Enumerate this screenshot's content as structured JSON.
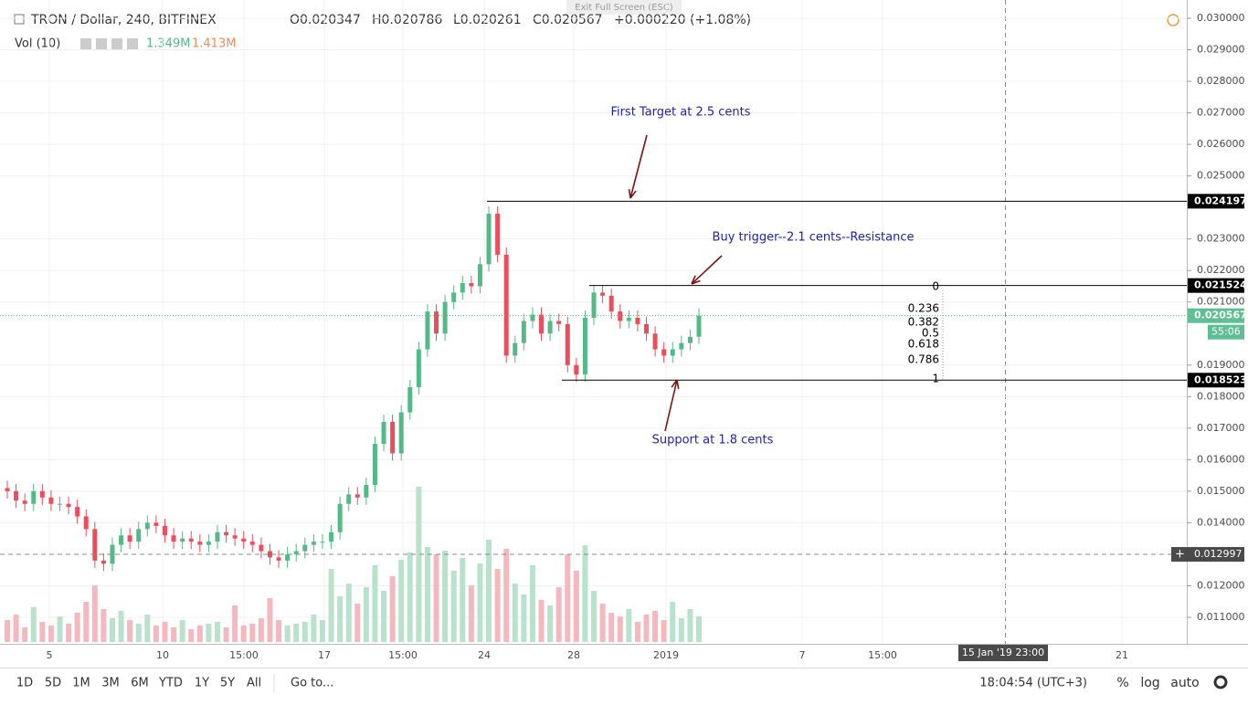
{
  "top_hint": "Exit Full Screen (ESC)",
  "header": {
    "symbol": "TRON / Dollar, 240, BITFINEX",
    "open": "O0.020347",
    "high": "H0.020786",
    "low": "L0.020261",
    "close": "C0.020567",
    "change": "+0.000220 (+1.08%)"
  },
  "volume_legend": {
    "label": "Vol (10)",
    "value_1": "1.349M",
    "value_2": "1.413M"
  },
  "price_axis": {
    "ylim": [
      0.011,
      0.03
    ],
    "ticks": [
      {
        "value": 0.03,
        "label": "0.030000"
      },
      {
        "value": 0.029,
        "label": "0.029000"
      },
      {
        "value": 0.028,
        "label": "0.028000"
      },
      {
        "value": 0.027,
        "label": "0.027000"
      },
      {
        "value": 0.026,
        "label": "0.026000"
      },
      {
        "value": 0.025,
        "label": "0.025000"
      },
      {
        "value": 0.023,
        "label": "0.023000"
      },
      {
        "value": 0.022,
        "label": "0.022000"
      },
      {
        "value": 0.021,
        "label": "0.021000"
      },
      {
        "value": 0.019,
        "label": "0.019000"
      },
      {
        "value": 0.018,
        "label": "0.018000"
      },
      {
        "value": 0.017,
        "label": "0.017000"
      },
      {
        "value": 0.016,
        "label": "0.016000"
      },
      {
        "value": 0.015,
        "label": "0.015000"
      },
      {
        "value": 0.014,
        "label": "0.014000"
      },
      {
        "value": 0.012,
        "label": "0.012000"
      },
      {
        "value": 0.011,
        "label": "0.011000"
      }
    ],
    "markers": [
      {
        "value": 0.024197,
        "label": "0.024197"
      },
      {
        "value": 0.021524,
        "label": "0.021524"
      },
      {
        "value": 0.018523,
        "label": "0.018523"
      }
    ],
    "last_price": {
      "value": 0.020567,
      "label": "0.020567",
      "countdown": "55:06"
    },
    "crosshair": {
      "value": 0.012997,
      "label": "0.012997"
    }
  },
  "candles": {
    "closes": [
      0.015,
      0.0147,
      0.0146,
      0.015,
      0.0148,
      0.0146,
      0.0146,
      0.0145,
      0.0142,
      0.0138,
      0.0128,
      0.0127,
      0.0133,
      0.0136,
      0.0134,
      0.0138,
      0.014,
      0.0139,
      0.0136,
      0.0134,
      0.0135,
      0.0134,
      0.0133,
      0.0134,
      0.0137,
      0.0136,
      0.0135,
      0.0134,
      0.0133,
      0.0131,
      0.0129,
      0.0128,
      0.013,
      0.0131,
      0.0133,
      0.0134,
      0.0134,
      0.0137,
      0.0146,
      0.0149,
      0.0148,
      0.0152,
      0.0165,
      0.0172,
      0.0162,
      0.0175,
      0.0183,
      0.0195,
      0.0207,
      0.02,
      0.021,
      0.0213,
      0.0216,
      0.0215,
      0.0222,
      0.0238,
      0.0225,
      0.0193,
      0.0197,
      0.0204,
      0.0206,
      0.02,
      0.0204,
      0.0203,
      0.019,
      0.0187,
      0.0205,
      0.0213,
      0.0212,
      0.0207,
      0.0204,
      0.0205,
      0.0203,
      0.02,
      0.0195,
      0.0193,
      0.0195,
      0.0197,
      0.0199,
      0.020567
    ],
    "first_open": 0.0151,
    "volumes": [
      1.2,
      1.5,
      0.8,
      1.9,
      1.1,
      0.9,
      1.4,
      1.0,
      1.6,
      2.2,
      3.1,
      1.8,
      1.3,
      1.7,
      1.2,
      1.0,
      1.5,
      0.9,
      1.1,
      0.8,
      1.2,
      0.7,
      0.9,
      1.0,
      1.1,
      0.8,
      2.0,
      0.9,
      1.0,
      1.3,
      2.4,
      1.2,
      0.9,
      1.0,
      1.1,
      1.5,
      1.2,
      4.0,
      2.5,
      3.2,
      2.1,
      3.0,
      4.2,
      2.8,
      3.6,
      4.5,
      4.9,
      8.5,
      5.2,
      4.8,
      5.0,
      3.9,
      4.6,
      3.1,
      4.3,
      5.6,
      4.0,
      5.1,
      3.2,
      2.6,
      4.2,
      2.3,
      2.0,
      3.0,
      4.8,
      3.9,
      5.3,
      2.8,
      2.1,
      1.6,
      1.4,
      1.8,
      1.1,
      1.5,
      1.7,
      1.2,
      2.2,
      1.3,
      1.8,
      1.4
    ]
  },
  "annotations": {
    "first_target": "First Target at 2.5 cents",
    "buy_trigger": "Buy trigger--2.1 cents--Resistance",
    "support": "Support at 1.8 cents"
  },
  "fib_levels": [
    "0",
    "0.236",
    "0.382",
    "0.5",
    "0.618",
    "0.786",
    "1"
  ],
  "time_axis": {
    "labels": [
      "5",
      "10",
      "15:00",
      "17",
      "15:00",
      "24",
      "28",
      "2019",
      "7",
      "15:00",
      "21"
    ],
    "crosshair": "15 Jan '19   23:00"
  },
  "toolbar": {
    "ranges": [
      "1D",
      "5D",
      "1M",
      "3M",
      "6M",
      "YTD",
      "1Y",
      "5Y",
      "All"
    ],
    "goto": "Go to...",
    "clock": "18:04:54 (UTC+3)",
    "percent": "%",
    "log": "log",
    "auto": "auto"
  }
}
